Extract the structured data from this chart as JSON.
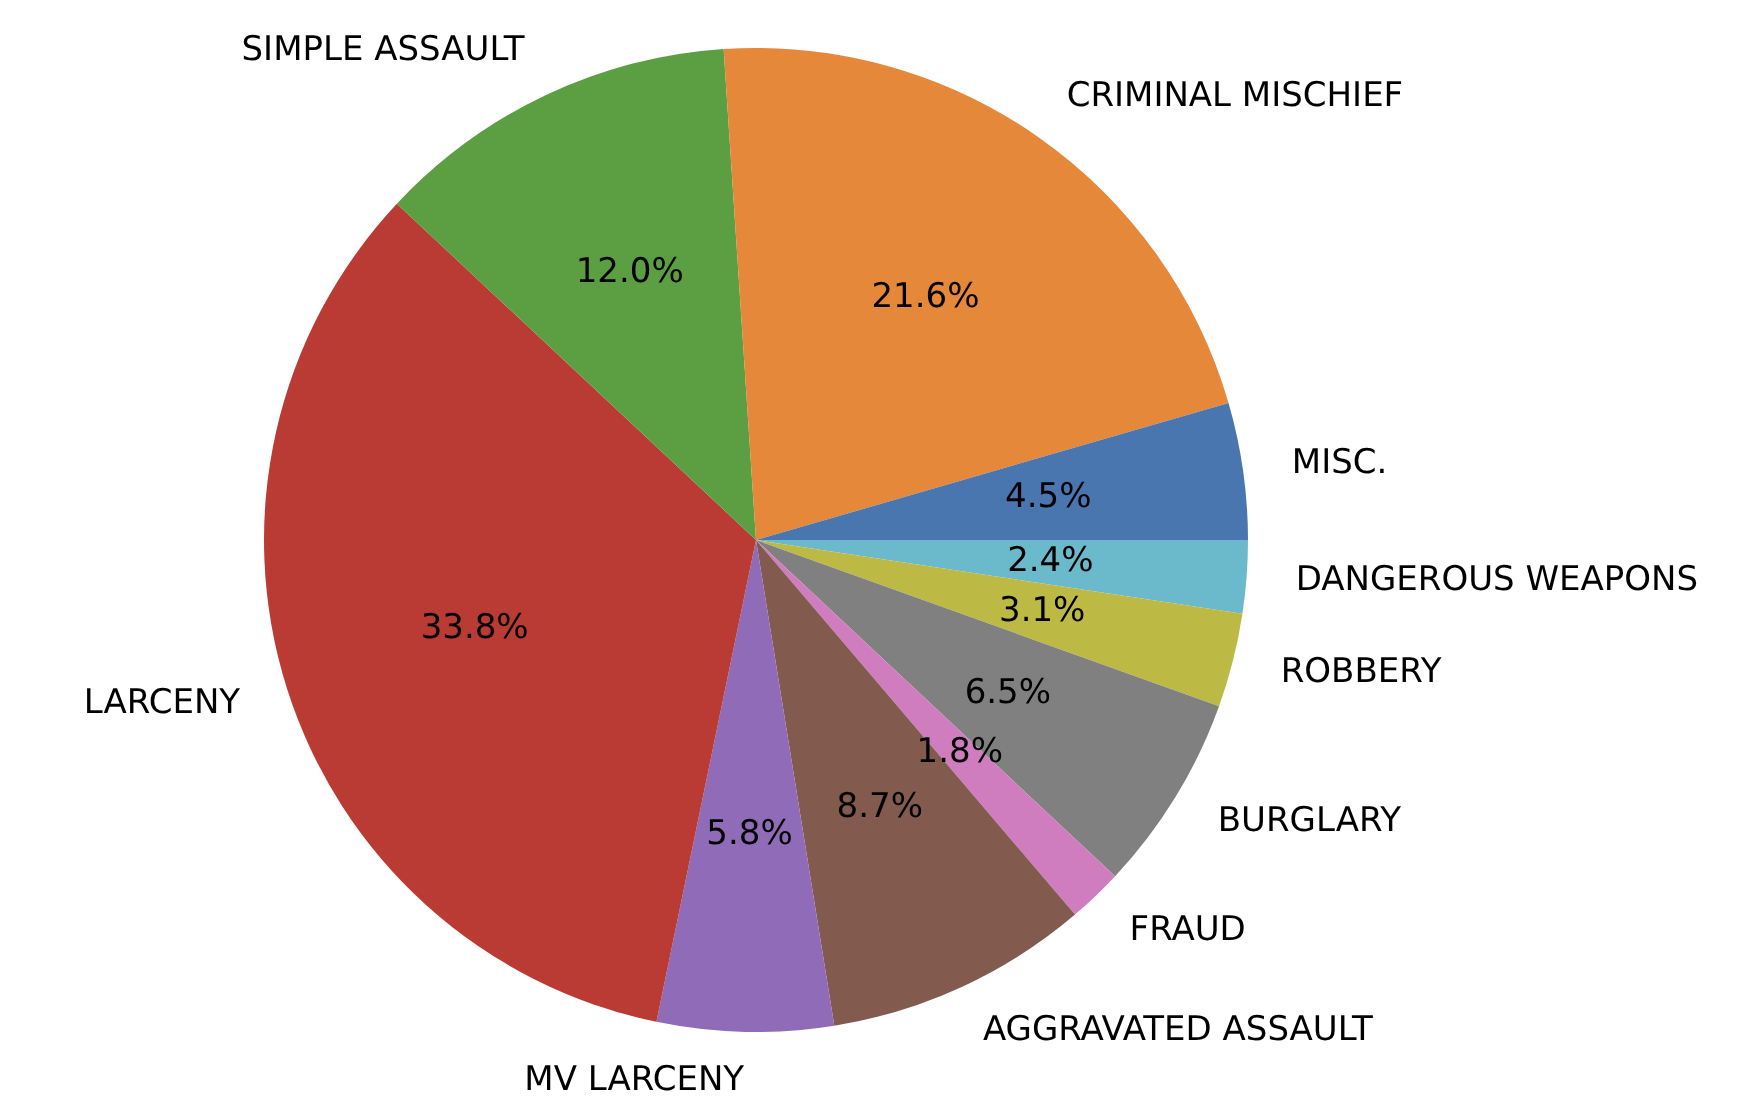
{
  "chart_data": {
    "type": "pie",
    "categories": [
      "MISC.",
      "CRIMINAL MISCHIEF",
      "SIMPLE ASSAULT",
      "LARCENY",
      "MV LARCENY",
      "AGGRAVATED ASSAULT",
      "FRAUD",
      "BURGLARY",
      "ROBBERY",
      "DANGEROUS WEAPONS"
    ],
    "values": [
      4.5,
      21.6,
      12.0,
      33.8,
      5.8,
      8.7,
      1.8,
      6.5,
      3.1,
      2.4
    ],
    "value_labels": [
      "4.5%",
      "21.6%",
      "12.0%",
      "33.8%",
      "5.8%",
      "8.7%",
      "1.8%",
      "6.5%",
      "3.1%",
      "2.4%"
    ],
    "colors": [
      "#4a76b0",
      "#e5883a",
      "#5c9e42",
      "#ba3b33",
      "#8f6bb8",
      "#825a4e",
      "#d07dc0",
      "#808080",
      "#bcb945",
      "#6bbacc"
    ],
    "legend": false
  }
}
